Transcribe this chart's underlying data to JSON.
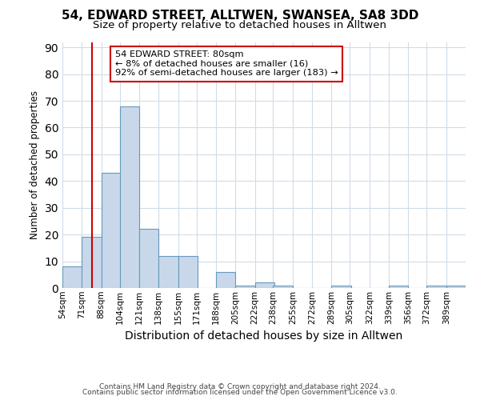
{
  "title1": "54, EDWARD STREET, ALLTWEN, SWANSEA, SA8 3DD",
  "title2": "Size of property relative to detached houses in Alltwen",
  "xlabel": "Distribution of detached houses by size in Alltwen",
  "ylabel": "Number of detached properties",
  "footer1": "Contains HM Land Registry data © Crown copyright and database right 2024.",
  "footer2": "Contains public sector information licensed under the Open Government Licence v3.0.",
  "bin_labels": [
    "54sqm",
    "71sqm",
    "88sqm",
    "104sqm",
    "121sqm",
    "138sqm",
    "155sqm",
    "171sqm",
    "188sqm",
    "205sqm",
    "222sqm",
    "238sqm",
    "255sqm",
    "272sqm",
    "289sqm",
    "305sqm",
    "322sqm",
    "339sqm",
    "356sqm",
    "372sqm",
    "389sqm"
  ],
  "bin_edges": [
    54,
    71,
    88,
    104,
    121,
    138,
    155,
    171,
    188,
    205,
    222,
    238,
    255,
    272,
    289,
    305,
    322,
    339,
    356,
    372,
    389
  ],
  "bin_width": 17,
  "heights": [
    8,
    19,
    43,
    68,
    22,
    12,
    12,
    0,
    6,
    1,
    2,
    1,
    0,
    0,
    1,
    0,
    0,
    1,
    0,
    1,
    1
  ],
  "bar_color": "#c8d8ea",
  "bar_edgecolor": "#6699bb",
  "property_line_x": 80,
  "annotation_line1": "54 EDWARD STREET: 80sqm",
  "annotation_line2": "← 8% of detached houses are smaller (16)",
  "annotation_line3": "92% of semi-detached houses are larger (183) →",
  "annotation_box_color": "#cc0000",
  "ylim": [
    0,
    92
  ],
  "yticks": [
    0,
    10,
    20,
    30,
    40,
    50,
    60,
    70,
    80,
    90
  ],
  "background_color": "#ffffff",
  "grid_color": "#d0dce8",
  "title1_fontsize": 11,
  "title2_fontsize": 9.5,
  "ylabel_fontsize": 8.5,
  "xlabel_fontsize": 10,
  "tick_fontsize": 7.5,
  "footer_fontsize": 6.5
}
